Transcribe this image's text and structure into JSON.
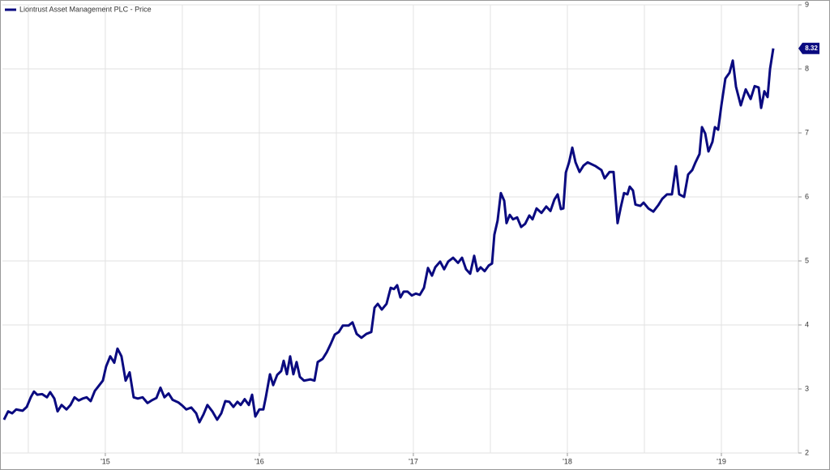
{
  "chart_data": {
    "type": "line",
    "series": [
      {
        "name": "Liontrust Asset Management PLC - Price",
        "color": "#0a0a80",
        "x": [
          2014.342,
          2014.369,
          2014.395,
          2014.421,
          2014.463,
          2014.49,
          2014.516,
          2014.537,
          2014.558,
          2014.59,
          2014.621,
          2014.642,
          2014.669,
          2014.69,
          2014.716,
          2014.748,
          2014.774,
          2014.8,
          2014.827,
          2014.853,
          2014.879,
          2014.905,
          2014.932,
          2014.958,
          2014.984,
          2015.005,
          2015.032,
          2015.058,
          2015.079,
          2015.105,
          2015.132,
          2015.158,
          2015.184,
          2015.211,
          2015.242,
          2015.274,
          2015.3,
          2015.332,
          2015.358,
          2015.384,
          2015.411,
          2015.437,
          2015.474,
          2015.5,
          2015.526,
          2015.558,
          2015.59,
          2015.611,
          2015.637,
          2015.663,
          2015.695,
          2015.726,
          2015.753,
          2015.779,
          2015.805,
          2015.832,
          2015.858,
          2015.879,
          2015.905,
          2015.932,
          2015.953,
          2015.974,
          2016.0,
          2016.026,
          2016.042,
          2016.069,
          2016.09,
          2016.116,
          2016.142,
          2016.158,
          2016.179,
          2016.2,
          2016.221,
          2016.242,
          2016.263,
          2016.29,
          2016.332,
          2016.358,
          2016.379,
          2016.411,
          2016.437,
          2016.463,
          2016.49,
          2016.516,
          2016.542,
          2016.579,
          2016.605,
          2016.632,
          2016.663,
          2016.695,
          2016.727,
          2016.748,
          2016.769,
          2016.795,
          2016.826,
          2016.853,
          2016.874,
          2016.895,
          2016.916,
          2016.937,
          2016.963,
          2016.99,
          2017.016,
          2017.042,
          2017.069,
          2017.095,
          2017.121,
          2017.142,
          2017.174,
          2017.2,
          2017.226,
          2017.258,
          2017.29,
          2017.316,
          2017.342,
          2017.369,
          2017.395,
          2017.416,
          2017.437,
          2017.463,
          2017.49,
          2017.511,
          2017.526,
          2017.547,
          2017.568,
          2017.59,
          2017.605,
          2017.626,
          2017.647,
          2017.674,
          2017.7,
          2017.726,
          2017.753,
          2017.774,
          2017.8,
          2017.832,
          2017.863,
          2017.89,
          2017.916,
          2017.937,
          2017.958,
          2017.974,
          2017.99,
          2018.011,
          2018.032,
          2018.053,
          2018.079,
          2018.105,
          2018.132,
          2018.184,
          2018.221,
          2018.242,
          2018.274,
          2018.3,
          2018.326,
          2018.347,
          2018.368,
          2018.39,
          2018.405,
          2018.426,
          2018.442,
          2018.474,
          2018.495,
          2018.526,
          2018.558,
          2018.59,
          2018.616,
          2018.647,
          2018.679,
          2018.705,
          2018.726,
          2018.758,
          2018.784,
          2018.811,
          2018.832,
          2018.858,
          2018.874,
          2018.895,
          2018.916,
          2018.942,
          2018.958,
          2018.979,
          2019.0,
          2019.026,
          2019.053,
          2019.074,
          2019.095,
          2019.126,
          2019.158,
          2019.19,
          2019.216,
          2019.242,
          2019.258,
          2019.279,
          2019.3,
          2019.316,
          2019.337
        ],
        "values": [
          2.52,
          2.65,
          2.62,
          2.68,
          2.66,
          2.72,
          2.87,
          2.96,
          2.91,
          2.92,
          2.87,
          2.95,
          2.85,
          2.65,
          2.75,
          2.68,
          2.75,
          2.87,
          2.82,
          2.85,
          2.87,
          2.81,
          2.97,
          3.05,
          3.13,
          3.35,
          3.51,
          3.41,
          3.63,
          3.51,
          3.13,
          3.26,
          2.87,
          2.85,
          2.87,
          2.78,
          2.82,
          2.86,
          3.02,
          2.87,
          2.93,
          2.83,
          2.79,
          2.74,
          2.68,
          2.71,
          2.62,
          2.48,
          2.6,
          2.75,
          2.65,
          2.52,
          2.62,
          2.81,
          2.8,
          2.72,
          2.8,
          2.75,
          2.84,
          2.75,
          2.91,
          2.57,
          2.68,
          2.68,
          2.87,
          3.23,
          3.06,
          3.22,
          3.28,
          3.44,
          3.23,
          3.51,
          3.23,
          3.42,
          3.19,
          3.13,
          3.15,
          3.13,
          3.42,
          3.47,
          3.57,
          3.7,
          3.85,
          3.89,
          3.99,
          3.99,
          4.04,
          3.86,
          3.8,
          3.86,
          3.89,
          4.27,
          4.33,
          4.24,
          4.33,
          4.58,
          4.56,
          4.62,
          4.43,
          4.52,
          4.52,
          4.46,
          4.49,
          4.47,
          4.58,
          4.89,
          4.77,
          4.9,
          4.99,
          4.87,
          4.99,
          5.05,
          4.97,
          5.05,
          4.87,
          4.8,
          5.08,
          4.84,
          4.9,
          4.84,
          4.93,
          4.96,
          5.41,
          5.63,
          6.06,
          5.94,
          5.59,
          5.72,
          5.65,
          5.68,
          5.53,
          5.58,
          5.71,
          5.65,
          5.82,
          5.75,
          5.85,
          5.78,
          5.96,
          6.04,
          5.81,
          5.82,
          6.38,
          6.54,
          6.77,
          6.54,
          6.39,
          6.49,
          6.54,
          6.48,
          6.42,
          6.29,
          6.39,
          6.39,
          5.59,
          5.84,
          6.06,
          6.04,
          6.16,
          6.1,
          5.88,
          5.86,
          5.91,
          5.82,
          5.77,
          5.87,
          5.97,
          6.04,
          6.04,
          6.48,
          6.04,
          6.0,
          6.35,
          6.42,
          6.54,
          6.67,
          7.09,
          6.99,
          6.71,
          6.86,
          7.09,
          7.05,
          7.43,
          7.85,
          7.94,
          8.13,
          7.72,
          7.43,
          7.68,
          7.53,
          7.73,
          7.71,
          7.39,
          7.65,
          7.56,
          8.0,
          8.32
        ]
      }
    ],
    "xlim": [
      2014.332,
      2019.5
    ],
    "xticks": [
      {
        "value": 2015,
        "label": "'15"
      },
      {
        "value": 2016,
        "label": "'16"
      },
      {
        "value": 2017,
        "label": "'17"
      },
      {
        "value": 2018,
        "label": "'18"
      },
      {
        "value": 2019,
        "label": "'19"
      }
    ],
    "xgrid_minor": [
      2014.5,
      2015.5,
      2016.5,
      2017.5,
      2018.5
    ],
    "ylim": [
      2,
      9
    ],
    "yticks": [
      2,
      3,
      4,
      5,
      6,
      7,
      8,
      9
    ],
    "grid": true,
    "legend": "top-left"
  }
}
